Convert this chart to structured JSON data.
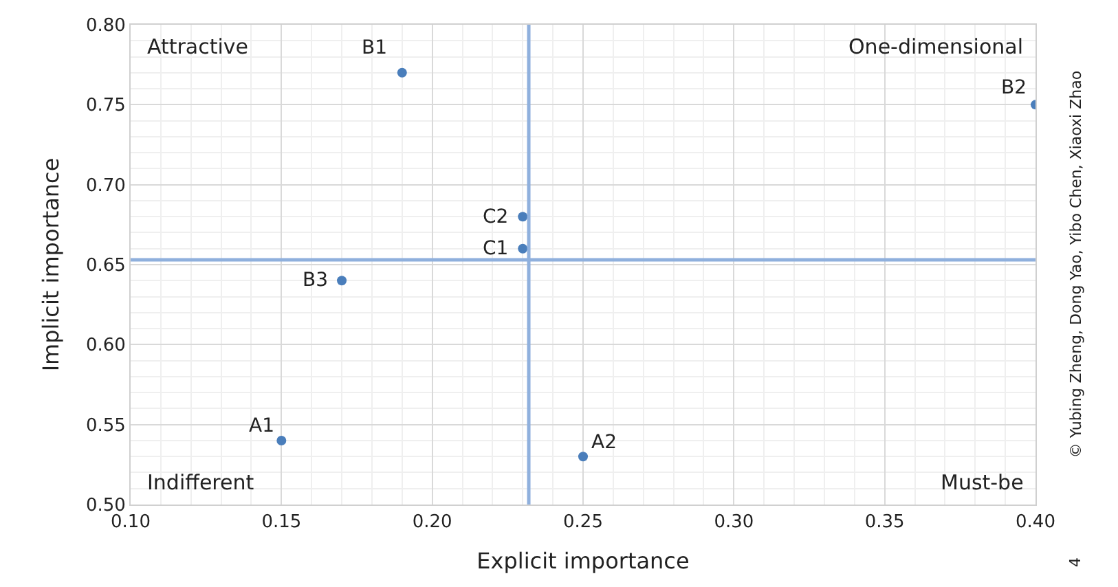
{
  "chart_data": {
    "type": "scatter",
    "xlabel": "Explicit importance",
    "ylabel": "Implicit importance",
    "x": [
      0.19,
      0.4,
      0.23,
      0.23,
      0.17,
      0.15,
      0.25
    ],
    "series": [
      {
        "color": "#4a7ebb",
        "values": [
          0.77,
          0.75,
          0.68,
          0.66,
          0.64,
          0.54,
          0.53
        ]
      }
    ],
    "marker": "circle",
    "xlim": [
      0.1,
      0.4
    ],
    "xticks": [
      {
        "value": 0.1,
        "label": "0.10"
      },
      {
        "value": 0.15,
        "label": "0.15"
      },
      {
        "value": 0.2,
        "label": "0.20"
      },
      {
        "value": 0.25,
        "label": "0.25"
      },
      {
        "value": 0.3,
        "label": "0.30"
      },
      {
        "value": 0.35,
        "label": "0.35"
      },
      {
        "value": 0.4,
        "label": "0.40"
      }
    ],
    "ylim": [
      0.5,
      0.8
    ],
    "yticks": [
      {
        "value": 0.5,
        "label": "0.50"
      },
      {
        "value": 0.55,
        "label": "0.55"
      },
      {
        "value": 0.6,
        "label": "0.60"
      },
      {
        "value": 0.65,
        "label": "0.65"
      },
      {
        "value": 0.7,
        "label": "0.70"
      },
      {
        "value": 0.75,
        "label": "0.75"
      },
      {
        "value": 0.8,
        "label": "0.80"
      }
    ],
    "grid": true,
    "ref_lines": [
      {
        "axis": "x",
        "value": 0.232,
        "color": "#8fb0dd"
      },
      {
        "axis": "y",
        "value": 0.653,
        "color": "#8fb0dd"
      }
    ],
    "annotations": [
      {
        "text": "B1",
        "x": 0.19,
        "y": 0.77
      },
      {
        "text": "B2",
        "x": 0.4,
        "y": 0.75
      },
      {
        "text": "C2",
        "x": 0.23,
        "y": 0.68
      },
      {
        "text": "C1",
        "x": 0.23,
        "y": 0.66
      },
      {
        "text": "B3",
        "x": 0.17,
        "y": 0.64
      },
      {
        "text": "A1",
        "x": 0.15,
        "y": 0.54
      },
      {
        "text": "A2",
        "x": 0.25,
        "y": 0.53
      },
      "Attractive",
      "One-dimensional",
      "Indifferent",
      "Must-be",
      "© Yubing Zheng, Dong Yao, Yibo Chen, Xiaoxi Zhao",
      "4"
    ]
  }
}
